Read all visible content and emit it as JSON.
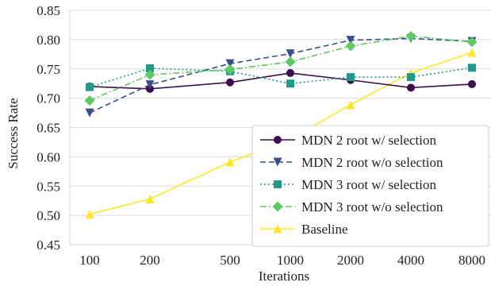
{
  "chart_data": {
    "type": "line",
    "xlabel": "Iterations",
    "ylabel": "Success Rate",
    "categories": [
      "100",
      "200",
      "500",
      "1000",
      "2000",
      "4000",
      "8000"
    ],
    "ylim": [
      0.45,
      0.85
    ],
    "yticks": [
      "0.45",
      "0.50",
      "0.55",
      "0.60",
      "0.65",
      "0.70",
      "0.75",
      "0.80",
      "0.85"
    ],
    "grid": "horizontal",
    "legend_position": "bottom-right",
    "series": [
      {
        "name": "MDN 2 root w/ selection",
        "color": "#3b0f4f",
        "marker": "circle",
        "dash": "solid",
        "values": [
          0.72,
          0.716,
          0.727,
          0.743,
          0.731,
          0.718,
          0.724
        ]
      },
      {
        "name": "MDN 2 root w/o selection",
        "color": "#3a4e8a",
        "marker": "triangle-down",
        "dash": "dashed",
        "values": [
          0.675,
          0.723,
          0.759,
          0.776,
          0.799,
          0.802,
          0.797
        ]
      },
      {
        "name": "MDN 3 root w/ selection",
        "color": "#1f9a8a",
        "marker": "square",
        "dash": "dotted",
        "values": [
          0.719,
          0.751,
          0.746,
          0.725,
          0.736,
          0.736,
          0.752
        ]
      },
      {
        "name": "MDN 3 root w/o selection",
        "color": "#5ec962",
        "marker": "diamond",
        "dash": "dashdot",
        "values": [
          0.696,
          0.74,
          0.749,
          0.762,
          0.789,
          0.806,
          0.796
        ]
      },
      {
        "name": "Baseline",
        "color": "#fde725",
        "marker": "triangle-up",
        "dash": "solid",
        "values": [
          0.502,
          0.528,
          0.591,
          0.63,
          0.689,
          0.743,
          0.778
        ]
      }
    ]
  }
}
